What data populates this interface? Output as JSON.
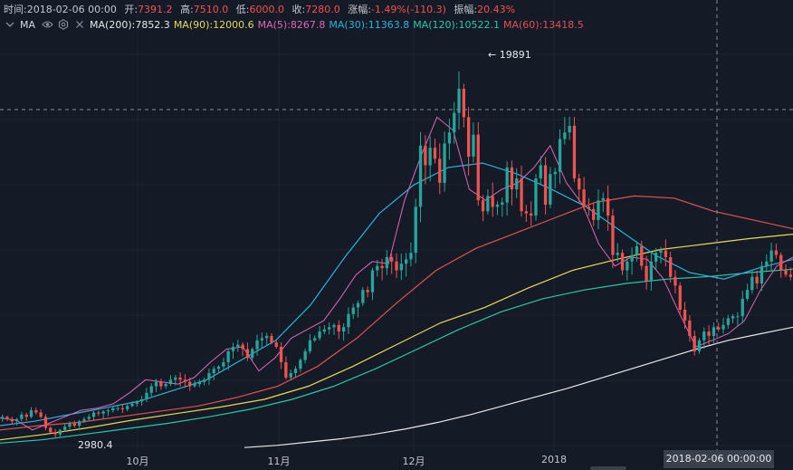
{
  "info": {
    "time_label": "时间:",
    "time": "2018-02-06 00:00",
    "open_label": "开:",
    "open": "7391.2",
    "high_label": "高:",
    "high": "7510.0",
    "low_label": "低:",
    "low": "6000.0",
    "close_label": "收:",
    "close": "7280.0",
    "change_label": "涨幅:",
    "change": "-1.49%(-110.3)",
    "amplitude_label": "振幅:",
    "amplitude": "20.43%"
  },
  "indicator": {
    "name": "MA",
    "icons": [
      "chevron-down-icon",
      "eye-icon",
      "gear-icon",
      "close-icon"
    ],
    "lines": [
      {
        "label": "MA(200):7852.3",
        "color": "#e8e8e8"
      },
      {
        "label": "MA(90):12000.6",
        "color": "#e9d957"
      },
      {
        "label": "MA(5):8267.8",
        "color": "#e066b9"
      },
      {
        "label": "MA(30):11363.8",
        "color": "#27b5d6"
      },
      {
        "label": "MA(120):10522.1",
        "color": "#28c9a6"
      },
      {
        "label": "MA(60):13418.5",
        "color": "#e0524f"
      }
    ]
  },
  "annotations": {
    "peak": "← 19891",
    "low": "2980.4",
    "crosshair_date": "2018-02-06 00:00:00"
  },
  "colors": {
    "up": "#26a69a",
    "down": "#ef5350",
    "background": "#151a27",
    "grid": "#1f2433"
  },
  "chart_data": {
    "type": "candlestick",
    "x_tick_labels": [
      "10月",
      "11月",
      "12月",
      "2018"
    ],
    "ylim": [
      2500,
      21500
    ],
    "peak_value": 19891,
    "low_value": 2980.4,
    "selected_date": "2018-02-06",
    "closes": [
      4100,
      4000,
      3900,
      4000,
      4200,
      4100,
      4400,
      4300,
      4100,
      3600,
      3400,
      3300,
      3500,
      3650,
      3800,
      3700,
      3900,
      4000,
      4100,
      4300,
      4250,
      4350,
      4400,
      4500,
      4500,
      4450,
      4600,
      4700,
      4800,
      4900,
      5200,
      5500,
      5700,
      5500,
      5600,
      5800,
      5900,
      5800,
      5700,
      5500,
      5600,
      5700,
      5800,
      6100,
      6300,
      6400,
      6600,
      7100,
      7300,
      7400,
      7200,
      6800,
      7200,
      7600,
      7700,
      7800,
      7500,
      7300,
      6600,
      5900,
      6100,
      6300,
      6700,
      7100,
      7600,
      7700,
      8000,
      8100,
      8200,
      8300,
      8000,
      8200,
      8800,
      9100,
      9300,
      9900,
      9800,
      10800,
      11000,
      10900,
      11400,
      11200,
      10800,
      11100,
      11300,
      11600,
      13700,
      16500,
      15600,
      16400,
      15900,
      14800,
      16600,
      17100,
      18000,
      19100,
      17800,
      16000,
      17000,
      14000,
      13500,
      14200,
      13700,
      13800,
      13900,
      15500,
      14500,
      15000,
      13500,
      13400,
      13300,
      15000,
      15600,
      13800,
      15200,
      15300,
      16800,
      17100,
      17400,
      15000,
      14500,
      13700,
      13600,
      13100,
      14000,
      14100,
      13300,
      11500,
      11600,
      10800,
      11200,
      11500,
      11900,
      11000,
      10300,
      11200,
      11600,
      11700,
      11400,
      10500,
      10100,
      9000,
      8500,
      7800,
      7100,
      7600,
      8000,
      7800,
      8200,
      8100,
      8300,
      8600,
      8700,
      8700,
      9500,
      9900,
      10500,
      10200,
      11000,
      11200,
      11700,
      11500,
      10800,
      10600,
      10500
    ],
    "ma_lines": {
      "MA200": [
        2700,
        2800,
        2950,
        3100,
        3300,
        3550,
        3850,
        4200,
        4600,
        5000,
        5400,
        5850,
        6300,
        6750,
        7200,
        7600,
        7900,
        8200
      ],
      "MA90": [
        3050,
        3300,
        3600,
        3950,
        4250,
        4550,
        4900,
        5500,
        6400,
        7400,
        8400,
        9100,
        10000,
        10800,
        11300,
        11750,
        12000,
        12250,
        12450
      ],
      "MA120": [
        2900,
        3050,
        3300,
        3550,
        3800,
        4100,
        4450,
        4900,
        5500,
        6300,
        7200,
        8100,
        8900,
        9500,
        9900,
        10200,
        10400,
        10520,
        10700,
        10850
      ],
      "MA60": [
        3500,
        3700,
        3850,
        4100,
        4350,
        4600,
        5000,
        5500,
        6400,
        7700,
        9300,
        10800,
        11800,
        12500,
        13200,
        13900,
        14200,
        14100,
        13500,
        13100,
        12700
      ],
      "MA30": [
        3700,
        3900,
        4200,
        4500,
        4800,
        5300,
        5800,
        6700,
        7600,
        9200,
        11400,
        13400,
        14700,
        15500,
        15700,
        15200,
        14500,
        13700,
        12600,
        11500,
        10700,
        10400,
        10900,
        11300
      ],
      "MA5": [
        4050,
        3950,
        3500,
        3800,
        4100,
        4400,
        4500,
        4700,
        5200,
        5800,
        5700,
        5600,
        5900,
        6600,
        7200,
        7300,
        6200,
        6800,
        7700,
        8100,
        8500,
        9500,
        10600,
        11200,
        11100,
        14000,
        16000,
        17800,
        17200,
        14500,
        14000,
        14500,
        14800,
        15500,
        16500,
        14800,
        13800,
        12000,
        11000,
        11400,
        11300,
        10400,
        8800,
        7300,
        7600,
        7900,
        8500,
        9900,
        11000,
        11400
      ]
    }
  }
}
